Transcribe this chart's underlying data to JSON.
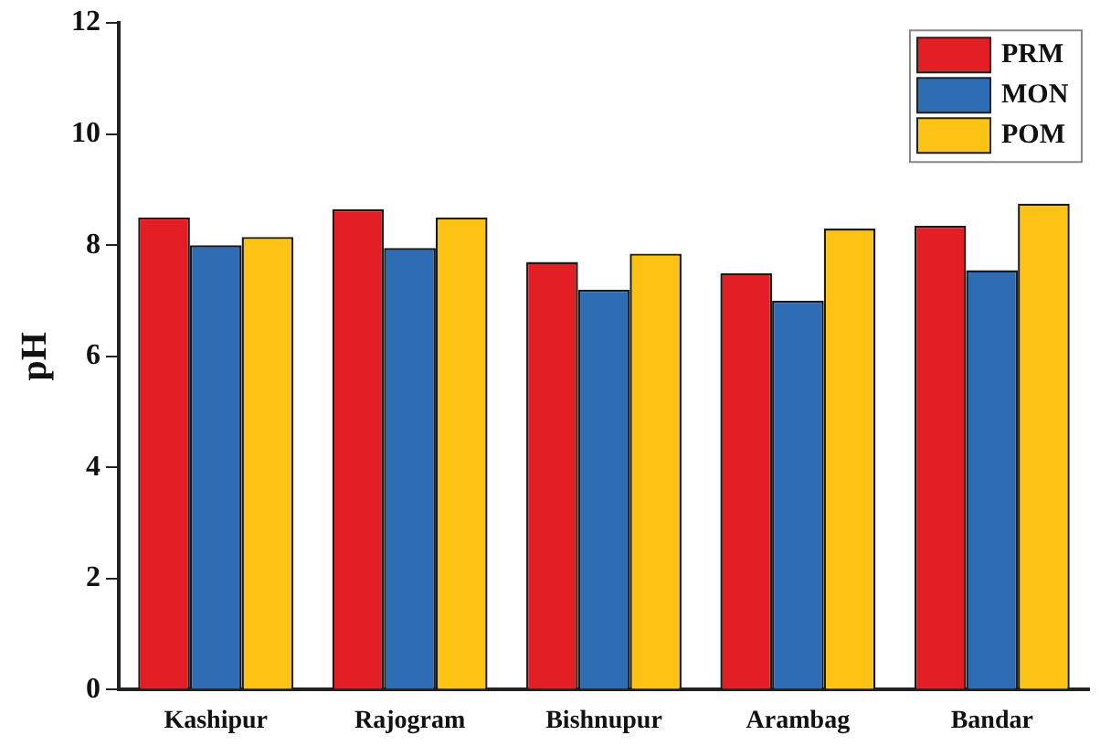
{
  "chart_data": {
    "type": "bar",
    "ylabel": "pH",
    "categories": [
      "Kashipur",
      "Rajogram",
      "Bishnupur",
      "Arambag",
      "Bandar"
    ],
    "series": [
      {
        "name": "PRM",
        "color": "#e31e25",
        "values": [
          8.5,
          8.65,
          7.7,
          7.5,
          8.35
        ]
      },
      {
        "name": "MON",
        "color": "#2e6db4",
        "values": [
          8.0,
          7.95,
          7.2,
          7.0,
          7.55
        ]
      },
      {
        "name": "POM",
        "color": "#fcc315",
        "values": [
          8.15,
          8.5,
          7.85,
          8.3,
          8.75
        ]
      }
    ],
    "ylim": [
      0,
      12
    ],
    "yticks": [
      0,
      2,
      4,
      6,
      8,
      10,
      12
    ],
    "grid": false,
    "legend": "top right"
  }
}
